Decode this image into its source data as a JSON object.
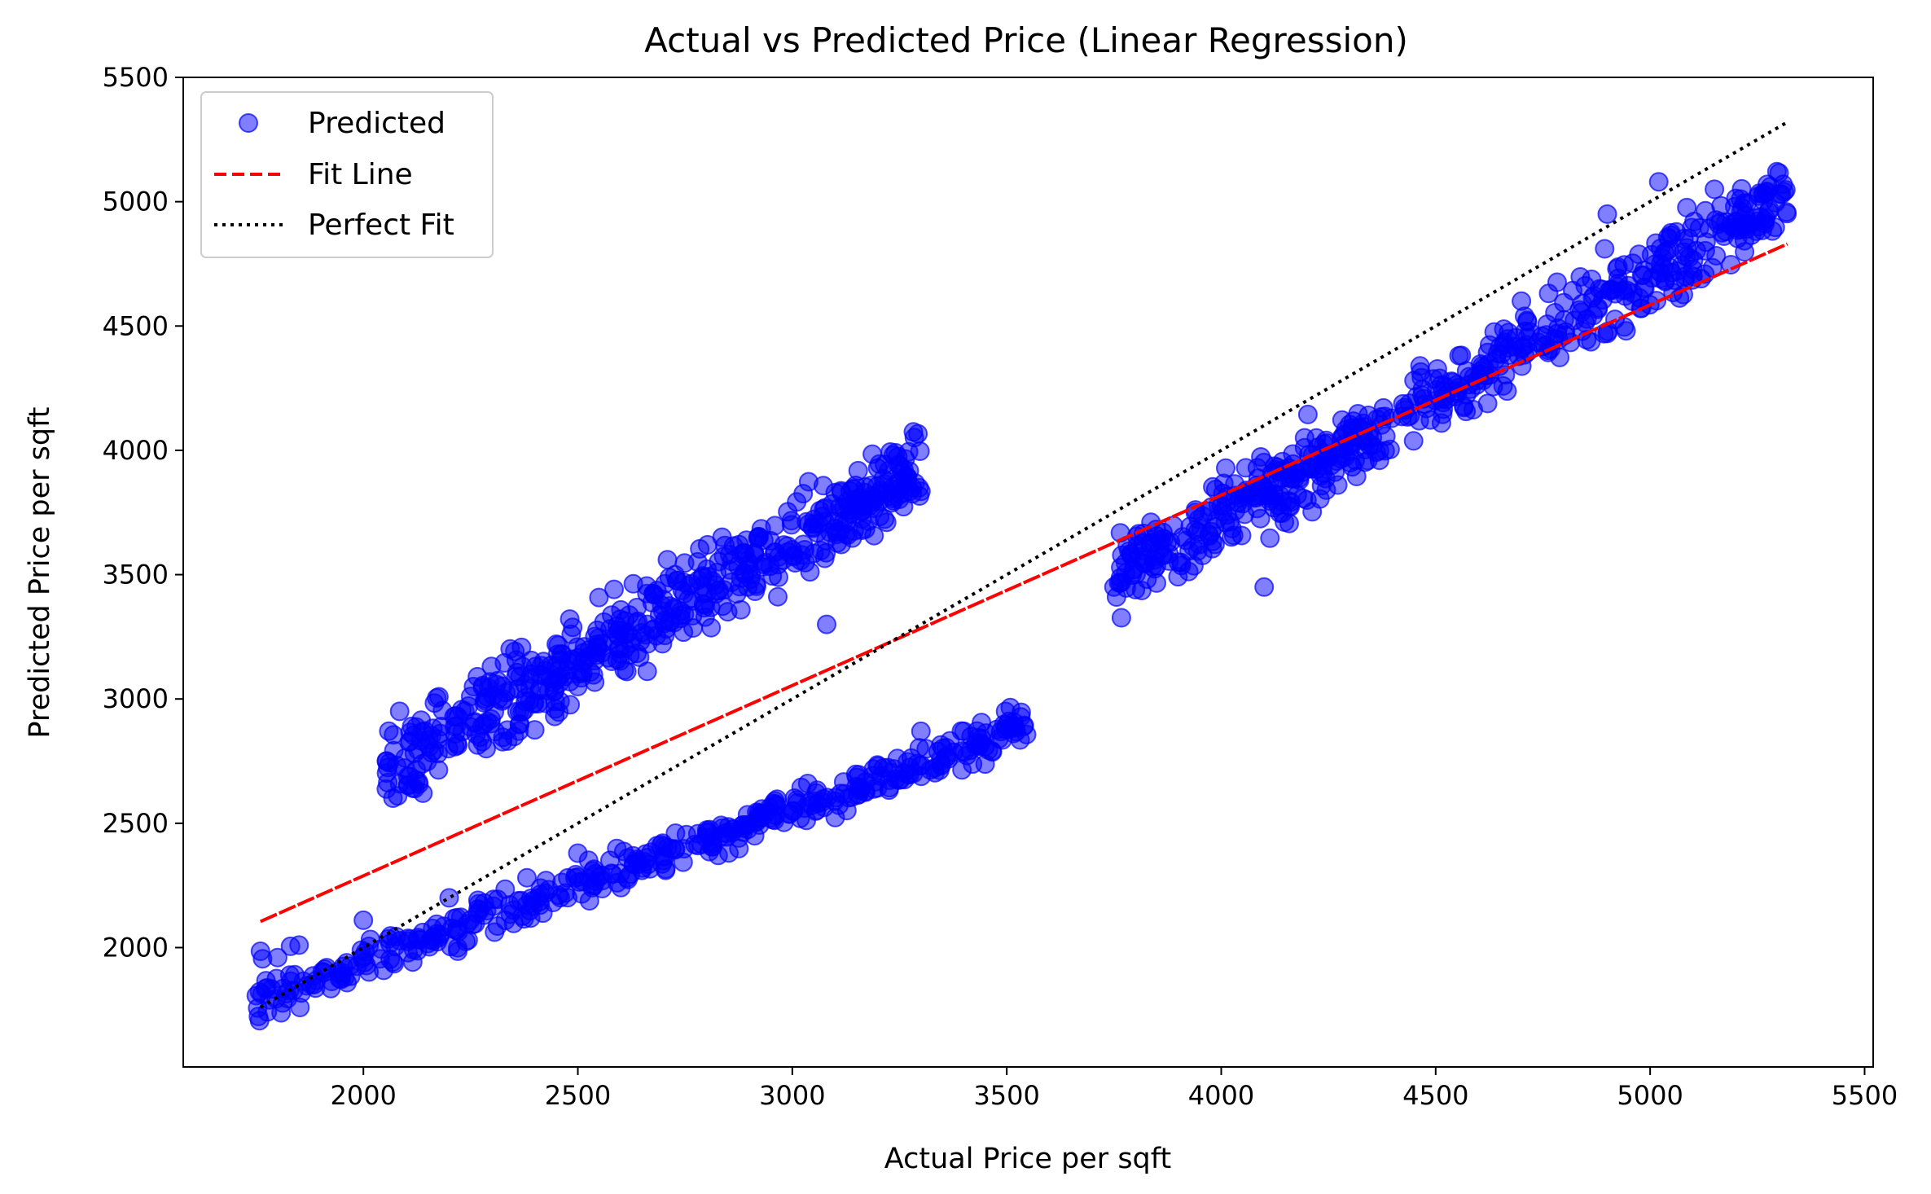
{
  "chart_data": {
    "type": "scatter",
    "title": "Actual vs Predicted Price (Linear Regression)",
    "xlabel": "Actual Price per sqft",
    "ylabel": "Predicted Price per sqft",
    "xlim": [
      1580,
      5520
    ],
    "ylim": [
      1520,
      5500
    ],
    "xticks": [
      2000,
      2500,
      3000,
      3500,
      4000,
      4500,
      5000,
      5500
    ],
    "yticks": [
      2000,
      2500,
      3000,
      3500,
      4000,
      4500,
      5000,
      5500
    ],
    "grid": false,
    "legend": {
      "placement": "top-left",
      "entries": [
        {
          "label": "Predicted",
          "kind": "marker"
        },
        {
          "label": "Fit Line",
          "kind": "dashed-line"
        },
        {
          "label": "Perfect Fit",
          "kind": "dotted-line"
        }
      ]
    },
    "series": [
      {
        "name": "Predicted",
        "kind": "scatter",
        "color": "#0000ff",
        "clusters": [
          {
            "x_range": [
              1750,
              3550
            ],
            "intercept": 700,
            "slope": 0.62,
            "spread": 80,
            "count": 420
          },
          {
            "x_range": [
              2050,
              3300
            ],
            "intercept": 700,
            "slope": 0.98,
            "spread": 170,
            "count": 520
          },
          {
            "x_range": [
              3750,
              5320
            ],
            "intercept": -190,
            "slope": 0.98,
            "spread": 150,
            "count": 560
          }
        ],
        "points": [
          [
            1760,
            1985
          ],
          [
            1765,
            1955
          ],
          [
            1800,
            1960
          ],
          [
            1830,
            2005
          ],
          [
            1850,
            2010
          ],
          [
            2000,
            2110
          ],
          [
            2200,
            2200
          ],
          [
            2500,
            2380
          ],
          [
            2700,
            2350
          ],
          [
            3000,
            2550
          ],
          [
            3200,
            2730
          ],
          [
            3400,
            2870
          ],
          [
            3540,
            2890
          ],
          [
            3300,
            2870
          ],
          [
            2080,
            2610
          ],
          [
            2120,
            2640
          ],
          [
            2250,
            3010
          ],
          [
            2500,
            3050
          ],
          [
            2700,
            3400
          ],
          [
            3000,
            3600
          ],
          [
            3100,
            3830
          ],
          [
            3220,
            3830
          ],
          [
            3300,
            3835
          ],
          [
            3080,
            3300
          ],
          [
            3750,
            3450
          ],
          [
            3800,
            3440
          ],
          [
            3900,
            3550
          ],
          [
            4100,
            3450
          ],
          [
            4200,
            3800
          ],
          [
            4500,
            4200
          ],
          [
            4700,
            4600
          ],
          [
            4900,
            4950
          ],
          [
            5020,
            5080
          ],
          [
            5150,
            5050
          ],
          [
            5280,
            5060
          ],
          [
            5310,
            5070
          ],
          [
            5100,
            4700
          ],
          [
            4900,
            4470
          ]
        ]
      },
      {
        "name": "Fit Line",
        "kind": "line",
        "style": "dashed",
        "color": "#ff0000",
        "points": [
          [
            1760,
            2105
          ],
          [
            5320,
            4830
          ]
        ]
      },
      {
        "name": "Perfect Fit",
        "kind": "line",
        "style": "dotted",
        "color": "#000000",
        "points": [
          [
            1760,
            1760
          ],
          [
            5320,
            5320
          ]
        ]
      }
    ]
  }
}
